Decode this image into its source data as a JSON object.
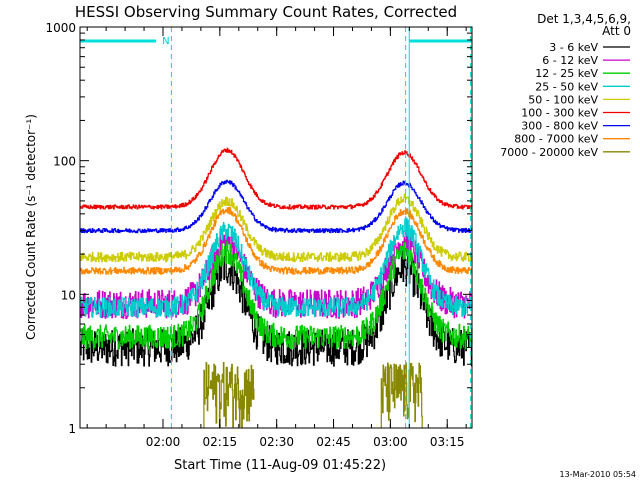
{
  "chart_data": {
    "type": "line",
    "title": "HESSI Observing Summary Count Rates, Corrected",
    "xlabel": "Start Time (11-Aug-09 01:45:22)",
    "ylabel": "Corrected Count Rate (s⁻¹ detector⁻¹)",
    "y_scale": "log",
    "ylim": [
      1,
      1000
    ],
    "xlim_minutes": [
      1.635,
      3.359
    ],
    "x_tick_labels": [
      "02:00",
      "02:15",
      "02:30",
      "02:45",
      "03:00",
      "03:15"
    ],
    "x_ticks_hours": [
      2.0,
      2.25,
      2.5,
      2.75,
      3.0,
      3.25
    ],
    "y_tick_labels": [
      "1",
      "10",
      "100",
      "1000"
    ],
    "y_ticks": [
      1,
      10,
      100,
      1000
    ],
    "legend_position": "right",
    "legend_header": [
      "Det 1,3,4,5,6,9,",
      "Att 0"
    ],
    "night_intervals": [
      [
        1.635,
        1.97
      ],
      [
        3.083,
        3.359
      ]
    ],
    "night_label": "N",
    "vertical_lines": [
      2.037,
      3.067,
      3.083,
      3.353
    ],
    "series": [
      {
        "name": "3 - 6 keV",
        "color": "#000000",
        "base": 4.0,
        "peak1": 16,
        "peak2": 16,
        "noise": 0.28
      },
      {
        "name": "6 - 12 keV",
        "color": "#cc00cc",
        "base": 8.5,
        "peak1": 25,
        "peak2": 25,
        "noise": 0.22
      },
      {
        "name": "12 - 25 keV",
        "color": "#00cc00",
        "base": 4.8,
        "peak1": 21,
        "peak2": 21,
        "noise": 0.18
      },
      {
        "name": "25 - 50 keV",
        "color": "#00cccc",
        "base": 8.0,
        "peak1": 30,
        "peak2": 32,
        "noise": 0.15
      },
      {
        "name": "50 - 100 keV",
        "color": "#cccc00",
        "base": 19,
        "peak1": 50,
        "peak2": 52,
        "noise": 0.07
      },
      {
        "name": "100 - 300 keV",
        "color": "#ee0000",
        "base": 45,
        "peak1": 120,
        "peak2": 115,
        "noise": 0.03
      },
      {
        "name": "300 - 800 keV",
        "color": "#0000ee",
        "base": 30,
        "peak1": 70,
        "peak2": 68,
        "noise": 0.03
      },
      {
        "name": "800 - 7000 keV",
        "color": "#ff8800",
        "base": 15,
        "peak1": 43,
        "peak2": 42,
        "noise": 0.05
      },
      {
        "name": "7000 - 20000 keV",
        "color": "#888800",
        "base": 1,
        "peak1": 3,
        "peak2": 3,
        "noise": 0.0
      }
    ],
    "x_minor_minutes": 5
  },
  "footer": {
    "timestamp": "13-Mar-2010 05:54"
  }
}
